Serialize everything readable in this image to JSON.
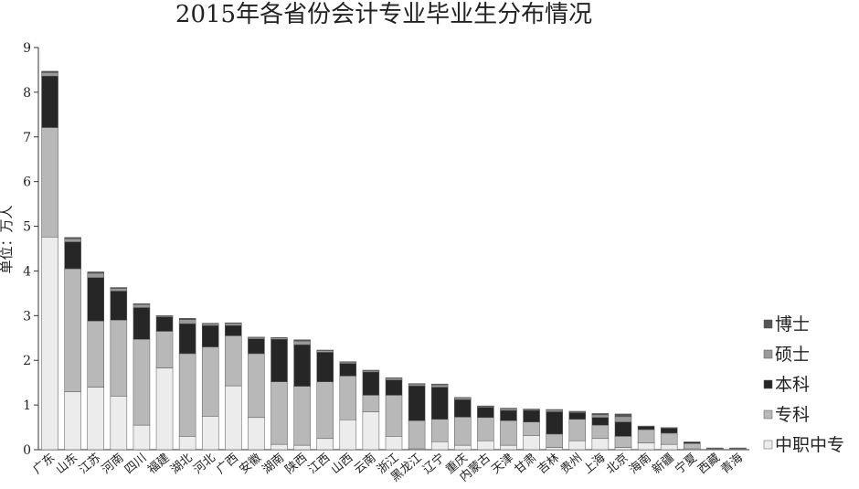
{
  "chart_data": {
    "type": "stacked-bar",
    "title": "2015年各省份会计专业毕业生分布情况",
    "y_label": "单位：万人",
    "categories": [
      "广东",
      "山东",
      "江苏",
      "河南",
      "四川",
      "福建",
      "湖北",
      "河北",
      "广西",
      "安徽",
      "湖南",
      "陕西",
      "江西",
      "山西",
      "云南",
      "浙江",
      "黑龙江",
      "辽宁",
      "重庆",
      "内蒙古",
      "天津",
      "甘肃",
      "吉林",
      "贵州",
      "上海",
      "北京",
      "海南",
      "新疆",
      "宁夏",
      "西藏",
      "青海"
    ],
    "series": [
      {
        "name": "中职中专",
        "color": "#ececec",
        "values": [
          4.76,
          1.3,
          1.4,
          1.2,
          0.55,
          1.83,
          0.3,
          0.75,
          1.43,
          0.72,
          0.12,
          0.1,
          0.25,
          0.67,
          0.85,
          0.3,
          0.02,
          0.18,
          0.1,
          0.2,
          0.1,
          0.32,
          0.05,
          0.2,
          0.25,
          0.05,
          0.15,
          0.12,
          0.02,
          0.01,
          0.01
        ]
      },
      {
        "name": "专科",
        "color": "#b8b8b8",
        "values": [
          2.45,
          2.75,
          1.48,
          1.7,
          1.92,
          0.82,
          1.85,
          1.55,
          1.12,
          1.43,
          1.4,
          1.32,
          1.27,
          0.98,
          0.37,
          0.92,
          0.63,
          0.5,
          0.63,
          0.52,
          0.55,
          0.3,
          0.3,
          0.48,
          0.3,
          0.25,
          0.3,
          0.25,
          0.12,
          0.02,
          0.02
        ]
      },
      {
        "name": "本科",
        "color": "#262626",
        "values": [
          1.15,
          0.6,
          0.97,
          0.65,
          0.71,
          0.32,
          0.67,
          0.48,
          0.23,
          0.33,
          0.95,
          0.93,
          0.66,
          0.28,
          0.52,
          0.34,
          0.78,
          0.72,
          0.39,
          0.23,
          0.23,
          0.26,
          0.5,
          0.15,
          0.17,
          0.32,
          0.07,
          0.11,
          0.03,
          0.01,
          0.01
        ]
      },
      {
        "name": "硕士",
        "color": "#9a9a9a",
        "values": [
          0.08,
          0.07,
          0.1,
          0.06,
          0.07,
          0.02,
          0.09,
          0.04,
          0.05,
          0.03,
          0.03,
          0.08,
          0.04,
          0.03,
          0.03,
          0.04,
          0.04,
          0.05,
          0.04,
          0.02,
          0.04,
          0.02,
          0.04,
          0.02,
          0.06,
          0.12,
          0.01,
          0.01,
          0.005,
          0,
          0
        ]
      },
      {
        "name": "博士",
        "color": "#555555",
        "values": [
          0.03,
          0.03,
          0.03,
          0.02,
          0.02,
          0.01,
          0.03,
          0.01,
          0.01,
          0.01,
          0.01,
          0.03,
          0.01,
          0.01,
          0.01,
          0.01,
          0.01,
          0.02,
          0.01,
          0.01,
          0.01,
          0.01,
          0.01,
          0.01,
          0.03,
          0.06,
          0,
          0.005,
          0,
          0,
          0
        ]
      }
    ],
    "ylim": [
      0,
      9
    ],
    "yticks": [
      0,
      1,
      2,
      3,
      4,
      5,
      6,
      7,
      8,
      9
    ],
    "grid": false
  }
}
